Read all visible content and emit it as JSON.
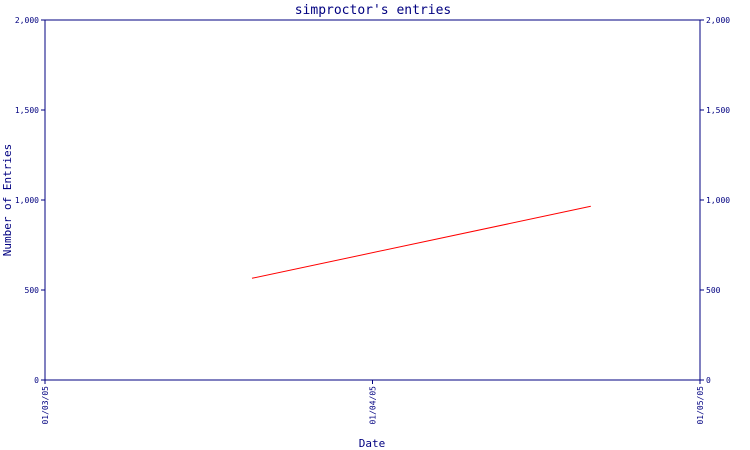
{
  "chart_data": {
    "type": "line",
    "title": "simproctor's entries",
    "xlabel": "Date",
    "ylabel": "Number of Entries",
    "x_tick_labels": [
      "01/03/05",
      "01/04/05",
      "01/05/05"
    ],
    "y_tick_labels": [
      "0",
      "500",
      "1,000",
      "1,500",
      "2,000"
    ],
    "y_ticks": [
      0,
      500,
      1000,
      1500,
      2000
    ],
    "ylim": [
      0,
      2000
    ],
    "xlim": [
      "2005-01-03",
      "2005-01-05"
    ],
    "grid": false,
    "colors": {
      "axis": "#000080",
      "line": "#ff0000",
      "background": "#ffffff"
    },
    "series": [
      {
        "x": [
          "2005-01-03T15:10",
          "2005-01-04T16:00"
        ],
        "values": [
          565,
          965
        ]
      }
    ]
  }
}
